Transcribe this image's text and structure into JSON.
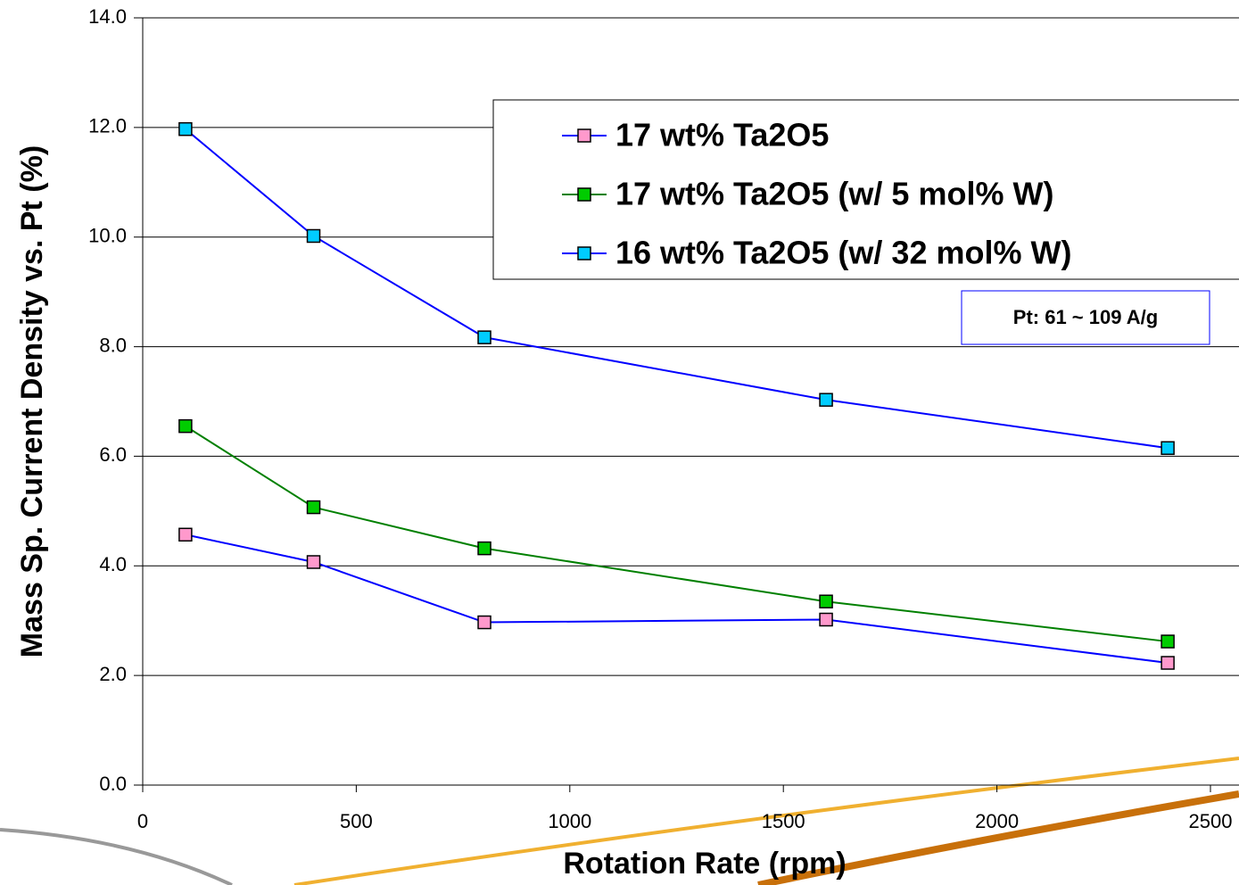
{
  "chart_data": {
    "type": "line",
    "x_label": "Rotation Rate (rpm)",
    "y_label": "Mass Sp. Current Density vs. Pt (%)",
    "annotation": "Pt: 61 ~ 109 A/g",
    "x": [
      100,
      400,
      800,
      1600,
      2400
    ],
    "series": [
      {
        "name": "17 wt% Ta2O5",
        "color": "#ff99cc",
        "line_color": "#0000ff",
        "values": [
          4.57,
          4.07,
          2.97,
          3.02,
          2.23
        ]
      },
      {
        "name": "17 wt% Ta2O5 (w/ 5 mol% W)",
        "color": "#00cc00",
        "line_color": "#008000",
        "values": [
          6.55,
          5.07,
          4.32,
          3.35,
          2.62
        ]
      },
      {
        "name": "16 wt% Ta2O5 (w/ 32 mol% W)",
        "color": "#00ccff",
        "line_color": "#0000ff",
        "values": [
          11.97,
          10.02,
          8.17,
          7.03,
          6.15
        ]
      }
    ],
    "xlim": [
      0,
      2500
    ],
    "xticks": [
      0,
      500,
      1000,
      1500,
      2000,
      2500
    ],
    "ylim": [
      0,
      14
    ],
    "yticks": [
      {
        "value": 0,
        "label": "0.0"
      },
      {
        "value": 2,
        "label": "2.0"
      },
      {
        "value": 4,
        "label": "4.0"
      },
      {
        "value": 6,
        "label": "6.0"
      },
      {
        "value": 8,
        "label": "8.0"
      },
      {
        "value": 10,
        "label": "10.0"
      },
      {
        "value": 12,
        "label": "12.0"
      },
      {
        "value": 14,
        "label": "14.0"
      }
    ],
    "grid": true
  }
}
